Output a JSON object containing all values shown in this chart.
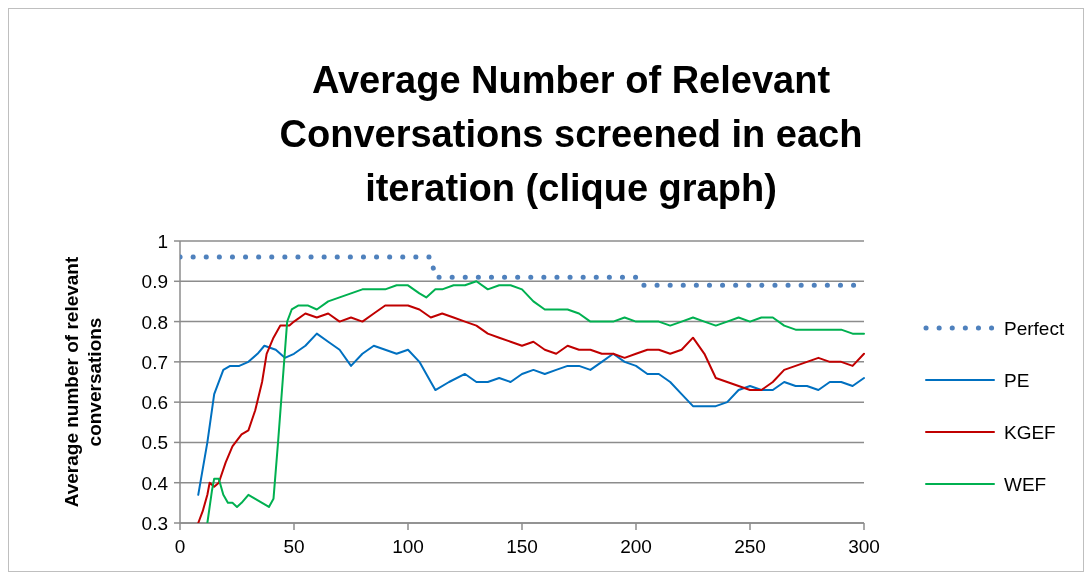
{
  "chart_data": {
    "type": "line",
    "title": "Average Number of Relevant Conversations screened in each iteration (clique graph)",
    "ylabel": "Average number of relevant conversations",
    "xlim": [
      0,
      300
    ],
    "xticks": [
      0,
      50,
      100,
      150,
      200,
      250,
      300
    ],
    "ylim": [
      0.3,
      1
    ],
    "yticks": [
      0.3,
      0.4,
      0.5,
      0.6,
      0.7,
      0.8,
      0.9,
      1
    ],
    "grid": "y",
    "legend": "right",
    "marker": "none",
    "series": [
      {
        "name": "Perfect",
        "color": "#4f81bd",
        "line_style": "dotted",
        "x": [
          0,
          110,
          111,
          112,
          200,
          201,
          202,
          300
        ],
        "values": [
          0.96,
          0.96,
          0.935,
          0.91,
          0.91,
          0.9,
          0.89,
          0.89
        ]
      },
      {
        "name": "PE",
        "color": "#0070c0",
        "line_style": "solid",
        "x": [
          8,
          12,
          15,
          19,
          22,
          26,
          30,
          34,
          37,
          42,
          46,
          50,
          55,
          60,
          65,
          70,
          75,
          80,
          85,
          90,
          95,
          100,
          105,
          110,
          112,
          118,
          125,
          130,
          135,
          140,
          145,
          150,
          155,
          160,
          165,
          170,
          175,
          180,
          185,
          190,
          195,
          200,
          205,
          210,
          215,
          220,
          225,
          230,
          235,
          240,
          245,
          250,
          255,
          260,
          265,
          270,
          275,
          280,
          285,
          290,
          295,
          300
        ],
        "values": [
          0.37,
          0.5,
          0.62,
          0.68,
          0.69,
          0.69,
          0.7,
          0.72,
          0.74,
          0.73,
          0.71,
          0.72,
          0.74,
          0.77,
          0.75,
          0.73,
          0.69,
          0.72,
          0.74,
          0.73,
          0.72,
          0.73,
          0.7,
          0.65,
          0.63,
          0.65,
          0.67,
          0.65,
          0.65,
          0.66,
          0.65,
          0.67,
          0.68,
          0.67,
          0.68,
          0.69,
          0.69,
          0.68,
          0.7,
          0.72,
          0.7,
          0.69,
          0.67,
          0.67,
          0.65,
          0.62,
          0.59,
          0.59,
          0.59,
          0.6,
          0.63,
          0.64,
          0.63,
          0.63,
          0.65,
          0.64,
          0.64,
          0.63,
          0.65,
          0.65,
          0.64,
          0.66
        ]
      },
      {
        "name": "KGEF",
        "color": "#c00000",
        "line_style": "solid",
        "x": [
          8,
          10,
          12,
          13,
          15,
          17,
          20,
          23,
          27,
          30,
          33,
          36,
          38,
          41,
          44,
          48,
          50,
          55,
          60,
          65,
          70,
          75,
          80,
          85,
          90,
          95,
          100,
          105,
          110,
          115,
          120,
          125,
          130,
          135,
          140,
          145,
          150,
          155,
          160,
          165,
          170,
          175,
          180,
          185,
          190,
          195,
          200,
          205,
          210,
          215,
          220,
          225,
          230,
          235,
          240,
          245,
          250,
          255,
          260,
          265,
          270,
          275,
          280,
          285,
          290,
          295,
          300
        ],
        "values": [
          0.3,
          0.33,
          0.37,
          0.4,
          0.39,
          0.4,
          0.45,
          0.49,
          0.52,
          0.53,
          0.58,
          0.65,
          0.72,
          0.76,
          0.79,
          0.79,
          0.8,
          0.82,
          0.81,
          0.82,
          0.8,
          0.81,
          0.8,
          0.82,
          0.84,
          0.84,
          0.84,
          0.83,
          0.81,
          0.82,
          0.81,
          0.8,
          0.79,
          0.77,
          0.76,
          0.75,
          0.74,
          0.75,
          0.73,
          0.72,
          0.74,
          0.73,
          0.73,
          0.72,
          0.72,
          0.71,
          0.72,
          0.73,
          0.73,
          0.72,
          0.73,
          0.76,
          0.72,
          0.66,
          0.65,
          0.64,
          0.63,
          0.63,
          0.65,
          0.68,
          0.69,
          0.7,
          0.71,
          0.7,
          0.7,
          0.69,
          0.72
        ]
      },
      {
        "name": "WEF",
        "color": "#00b050",
        "line_style": "solid",
        "x": [
          12,
          14,
          15,
          17,
          19,
          21,
          23,
          25,
          27,
          30,
          33,
          36,
          39,
          41,
          43,
          45,
          47,
          49,
          52,
          56,
          60,
          65,
          70,
          75,
          80,
          85,
          90,
          95,
          100,
          105,
          108,
          112,
          115,
          120,
          125,
          130,
          135,
          140,
          145,
          150,
          155,
          160,
          165,
          170,
          175,
          180,
          185,
          190,
          195,
          200,
          205,
          210,
          215,
          220,
          225,
          230,
          235,
          240,
          245,
          250,
          255,
          260,
          265,
          270,
          275,
          280,
          285,
          290,
          295,
          300
        ],
        "values": [
          0.3,
          0.38,
          0.41,
          0.41,
          0.37,
          0.35,
          0.35,
          0.34,
          0.35,
          0.37,
          0.36,
          0.35,
          0.34,
          0.36,
          0.5,
          0.65,
          0.8,
          0.83,
          0.84,
          0.84,
          0.83,
          0.85,
          0.86,
          0.87,
          0.88,
          0.88,
          0.88,
          0.89,
          0.89,
          0.87,
          0.86,
          0.88,
          0.88,
          0.89,
          0.89,
          0.9,
          0.88,
          0.89,
          0.89,
          0.88,
          0.85,
          0.83,
          0.83,
          0.83,
          0.82,
          0.8,
          0.8,
          0.8,
          0.81,
          0.8,
          0.8,
          0.8,
          0.79,
          0.8,
          0.81,
          0.8,
          0.79,
          0.8,
          0.81,
          0.8,
          0.81,
          0.81,
          0.79,
          0.78,
          0.78,
          0.78,
          0.78,
          0.78,
          0.77,
          0.77
        ]
      }
    ]
  }
}
